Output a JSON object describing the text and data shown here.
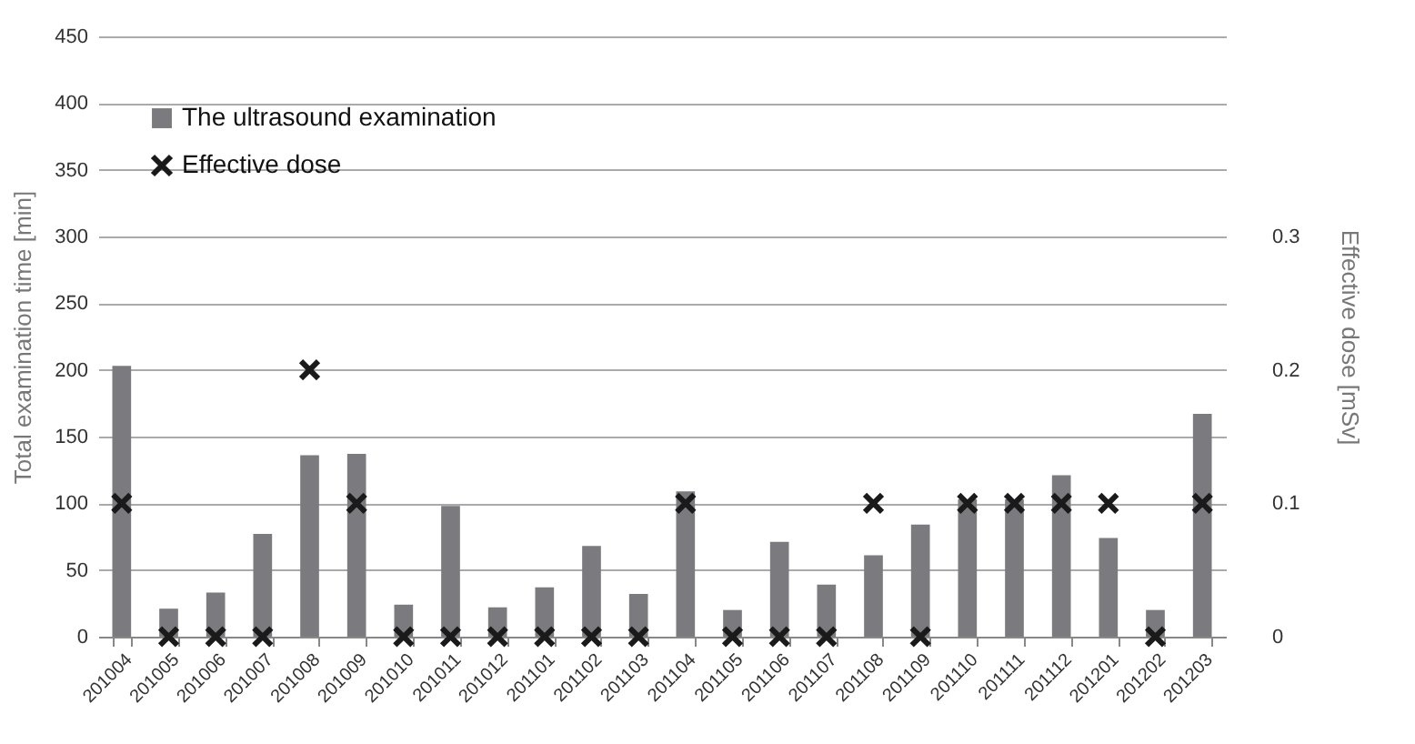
{
  "chart_data": {
    "type": "bar",
    "ylabel": "Total examination time [min]",
    "y2label": "Effective dose [mSv]",
    "categories": [
      "201004",
      "201005",
      "201006",
      "201007",
      "201008",
      "201009",
      "201010",
      "201011",
      "201012",
      "201101",
      "201102",
      "201103",
      "201104",
      "201105",
      "201106",
      "201107",
      "201108",
      "201109",
      "201110",
      "201111",
      "201112",
      "201201",
      "201202",
      "201203"
    ],
    "series": [
      {
        "name": "The ultrasound examination",
        "color": "#7b7b7f",
        "values": [
          203,
          21,
          33,
          77,
          136,
          137,
          24,
          98,
          22,
          37,
          68,
          32,
          109,
          20,
          71,
          39,
          61,
          84,
          103,
          103,
          121,
          74,
          20,
          167
        ]
      },
      {
        "name": "Effective dose",
        "type": "scatter",
        "axis": "y2",
        "marker": "cross",
        "color": "#1a1a1a",
        "values": [
          0.1,
          0,
          0,
          0,
          0.2,
          0.1,
          0,
          0,
          0,
          0,
          0,
          0,
          0.1,
          0,
          0,
          0,
          0.1,
          0,
          0.1,
          0.1,
          0.1,
          0.1,
          0,
          0.1
        ]
      }
    ],
    "ylim": [
      0,
      450
    ],
    "yticks": [
      0,
      50,
      100,
      150,
      200,
      250,
      300,
      350,
      400,
      450
    ],
    "y2lim": [
      0,
      0.45
    ],
    "y2ticks": [
      0,
      0.1,
      0.2,
      0.3
    ],
    "grid": "y",
    "legend": "top left"
  }
}
